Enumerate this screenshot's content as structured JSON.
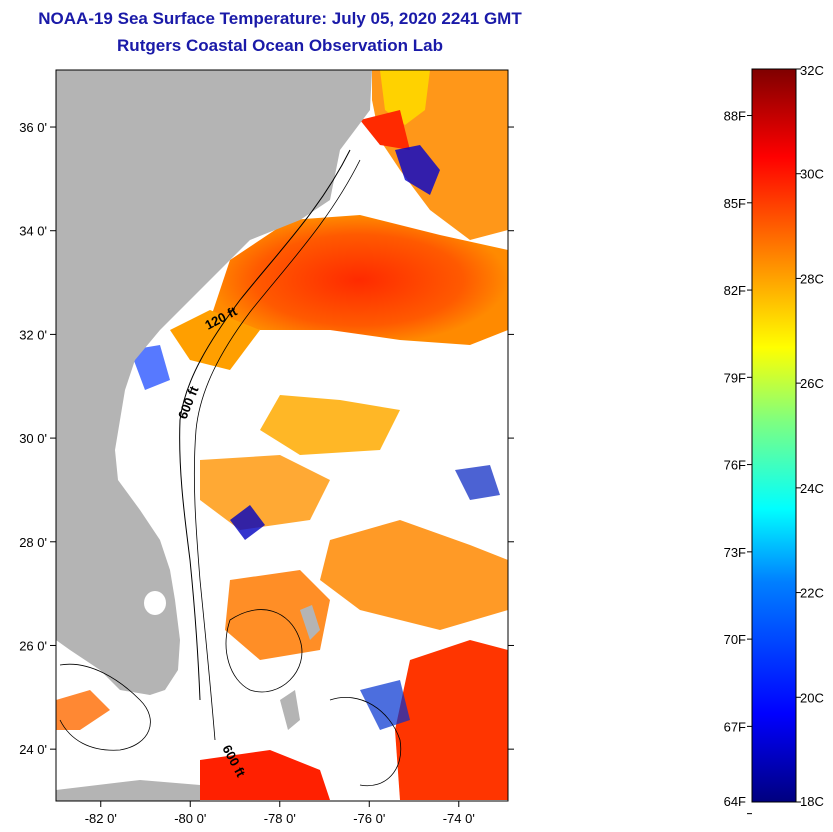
{
  "header": {
    "title": "NOAA-19 Sea Surface Temperature:  July 05, 2020 2241 GMT",
    "subtitle": "Rutgers Coastal Ocean Observation Lab"
  },
  "map": {
    "lat_range": [
      23.0,
      37.1
    ],
    "lon_range": [
      -83.0,
      -72.9
    ],
    "lat_labels": [
      "36 0'",
      "34 0'",
      "32 0'",
      "30 0'",
      "28 0'",
      "26 0'",
      "24 0'"
    ],
    "lat_values": [
      36,
      34,
      32,
      30,
      28,
      26,
      24
    ],
    "lon_labels": [
      "-82 0'",
      "-80 0'",
      "-78 0'",
      "-76 0'",
      "-74 0'"
    ],
    "lon_values": [
      -82,
      -80,
      -78,
      -76,
      -74
    ],
    "contour_labels": [
      "120 ft",
      "600 ft",
      "600 ft"
    ],
    "land_color": "#b4b4b4",
    "cloud_color": "#ffffff"
  },
  "colorbar": {
    "min_c": 18,
    "max_c": 32,
    "celsius_labels": [
      "32C",
      "30C",
      "28C",
      "26C",
      "24C",
      "22C",
      "20C",
      "18C"
    ],
    "celsius_values": [
      32,
      30,
      28,
      26,
      24,
      22,
      20,
      18
    ],
    "fahrenheit_labels": [
      "88F",
      "85F",
      "82F",
      "79F",
      "76F",
      "73F",
      "70F",
      "67F",
      "64F"
    ],
    "fahrenheit_values": [
      88,
      85,
      82,
      79,
      76,
      73,
      70,
      67,
      64
    ],
    "colors": [
      "#00007f",
      "#0000ff",
      "#007fff",
      "#00ffff",
      "#7fff7f",
      "#ffff00",
      "#ff7f00",
      "#ff0000",
      "#7f0000"
    ]
  }
}
